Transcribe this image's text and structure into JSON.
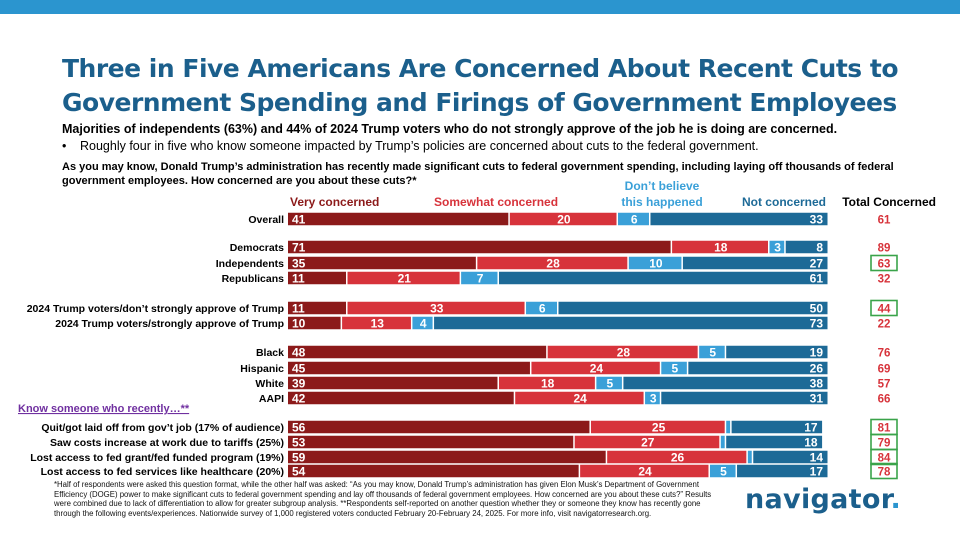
{
  "header": {
    "title": "Three in Five Americans Are Concerned About Recent Cuts to Government Spending and Firings of Government Employees",
    "subtitle": "Majorities of independents (63%) and 44% of 2024 Trump voters who do not strongly approve of the job he is doing are concerned.",
    "bullet": "Roughly four in five who know someone impacted by Trump’s policies are concerned about cuts to the federal government.",
    "question": "As you may know, Donald Trump’s administration has recently made significant cuts to federal government spending, including laying off thousands of federal government employees. How concerned are you about these cuts?*"
  },
  "colors": {
    "very_concerned": "#8c1a1a",
    "somewhat_concerned": "#d7333b",
    "dont_believe": "#3aa0d8",
    "not_concerned": "#1d6a97",
    "title": "#1b5f8c",
    "purple_label": "#7030a0",
    "highlight_box": "#3aa34a"
  },
  "chart_data": {
    "type": "stacked-bar-horizontal",
    "series": [
      {
        "name": "Very concerned",
        "key": "very"
      },
      {
        "name": "Somewhat concerned",
        "key": "somewhat"
      },
      {
        "name": "Don’t believe this happened",
        "key": "dont_believe"
      },
      {
        "name": "Not concerned",
        "key": "not"
      }
    ],
    "total_header": "Total Concerned",
    "group_label": "Know someone who recently…**",
    "rows": [
      {
        "label": "Overall",
        "values": [
          41,
          20,
          6,
          33
        ],
        "total": 61,
        "highlight": false
      },
      {
        "label": "Democrats",
        "values": [
          71,
          18,
          3,
          8
        ],
        "total": 89,
        "highlight": false
      },
      {
        "label": "Independents",
        "values": [
          35,
          28,
          10,
          27
        ],
        "total": 63,
        "highlight": true
      },
      {
        "label": "Republicans",
        "values": [
          11,
          21,
          7,
          61
        ],
        "total": 32,
        "highlight": false
      },
      {
        "label": "2024 Trump voters/don’t strongly approve of Trump",
        "values": [
          11,
          33,
          6,
          50
        ],
        "total": 44,
        "highlight": true
      },
      {
        "label": "2024 Trump voters/strongly approve of Trump",
        "values": [
          10,
          13,
          4,
          73
        ],
        "total": 22,
        "highlight": false
      },
      {
        "label": "Black",
        "values": [
          48,
          28,
          5,
          19
        ],
        "total": 76,
        "highlight": false
      },
      {
        "label": "Hispanic",
        "values": [
          45,
          24,
          5,
          26
        ],
        "total": 69,
        "highlight": false
      },
      {
        "label": "White",
        "values": [
          39,
          18,
          5,
          38
        ],
        "total": 57,
        "highlight": false
      },
      {
        "label": "AAPI",
        "values": [
          42,
          24,
          3,
          31
        ],
        "total": 66,
        "highlight": false
      },
      {
        "label": "Quit/got laid off from gov’t job (17% of audience)",
        "values": [
          56,
          25,
          1,
          17
        ],
        "total": 81,
        "highlight": true
      },
      {
        "label": "Saw costs increase at work due to tariffs (25%)",
        "values": [
          53,
          27,
          1,
          18
        ],
        "total": 79,
        "highlight": true
      },
      {
        "label": "Lost access to fed grant/fed funded program (19%)",
        "values": [
          59,
          26,
          1,
          14
        ],
        "total": 84,
        "highlight": true
      },
      {
        "label": "Lost access to fed services like healthcare (20%)",
        "values": [
          54,
          24,
          5,
          17
        ],
        "total": 78,
        "highlight": true
      }
    ]
  },
  "footnote": "*Half of respondents were asked this question format, while the other half was asked: “As you may know, Donald Trump’s administration has given Elon Musk’s Department of Government Efficiency (DOGE) power to make significant cuts to federal government spending and lay off thousands of federal government employees. How concerned are you about these cuts?” Results were combined due to lack of differentiation to allow for greater subgroup analysis. **Respondents self-reported on another question whether they or someone they know has recently gone through the following events/experiences. Nationwide survey of 1,000 registered voters conducted February 20-February 24, 2025. For more info, visit navigatorresearch.org.",
  "logo": {
    "text": "navigator",
    "dot": "."
  }
}
